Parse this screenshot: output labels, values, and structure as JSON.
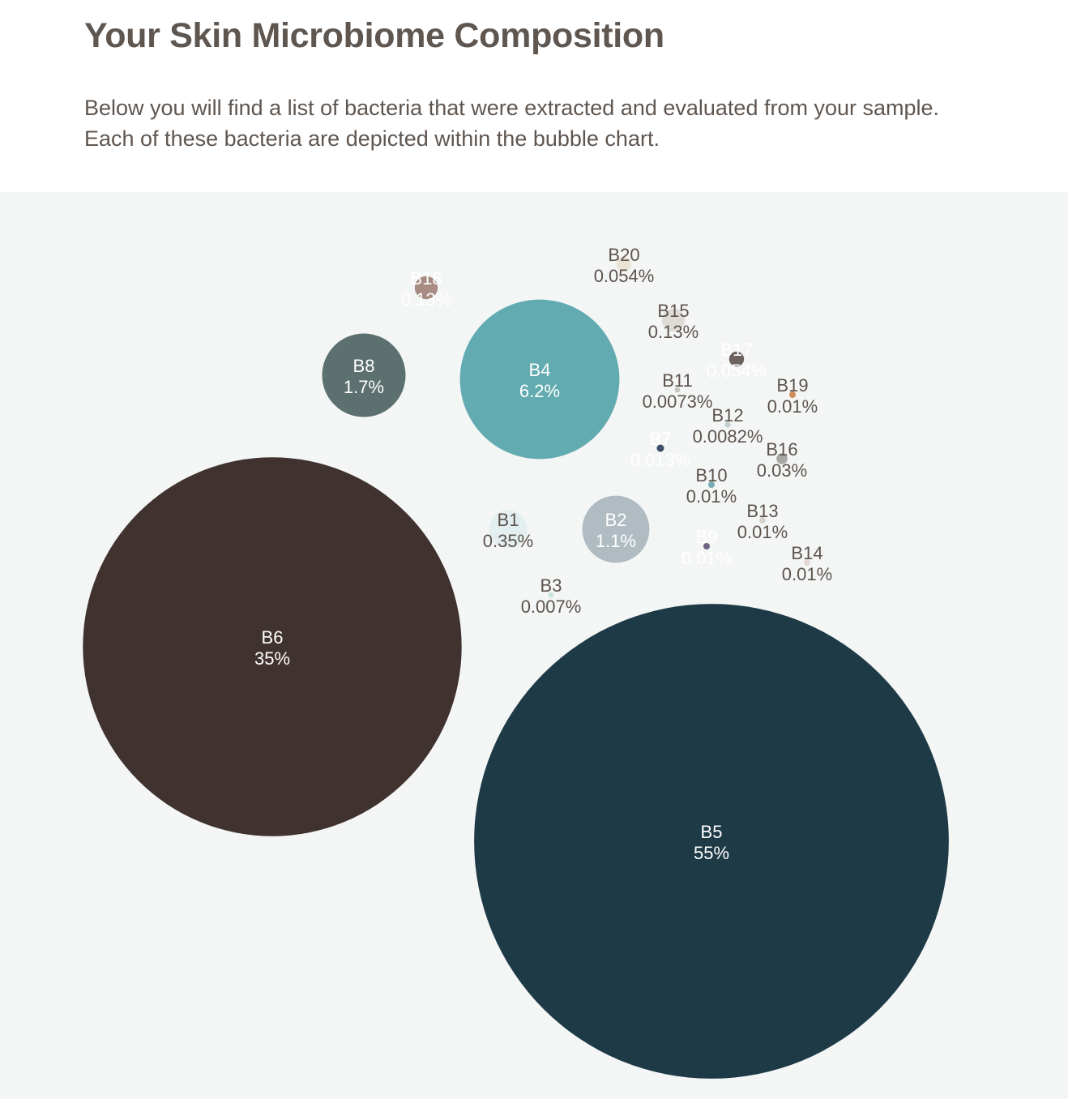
{
  "header": {
    "title": "Your Skin Microbiome Composition",
    "intro": "Below you will find a list of bacteria that were extracted and evaluated from your sample. Each of these bacteria are depicted within the bubble chart."
  },
  "chart_data": {
    "type": "bubble",
    "title": "",
    "legend": "none",
    "grid": false,
    "series": [
      {
        "name": "B1",
        "value": 0.35,
        "label": "0.35%",
        "color": "#e2eeef",
        "text_color": "#5d534c"
      },
      {
        "name": "B2",
        "value": 1.1,
        "label": "1.1%",
        "color": "#b0bcc2",
        "text_color": "#ffffff"
      },
      {
        "name": "B3",
        "value": 0.007,
        "label": "0.007%",
        "color": "#c9e3df",
        "text_color": "#5d534c"
      },
      {
        "name": "B4",
        "value": 6.2,
        "label": "6.2%",
        "color": "#62abb0",
        "text_color": "#ffffff"
      },
      {
        "name": "B5",
        "value": 55,
        "label": "55%",
        "color": "#1e3a46",
        "text_color": "#ffffff"
      },
      {
        "name": "B6",
        "value": 35,
        "label": "35%",
        "color": "#40322e",
        "text_color": "#ffffff"
      },
      {
        "name": "B7",
        "value": 0.013,
        "label": "0.013%",
        "color": "#3b4f66",
        "text_color": "#ffffff"
      },
      {
        "name": "B8",
        "value": 1.7,
        "label": "1.7%",
        "color": "#5c706f",
        "text_color": "#ffffff"
      },
      {
        "name": "B9",
        "value": 0.01,
        "label": "0.01%",
        "color": "#6e6380",
        "text_color": "#ffffff"
      },
      {
        "name": "B10",
        "value": 0.01,
        "label": "0.01%",
        "color": "#78acb3",
        "text_color": "#5d534c"
      },
      {
        "name": "B11",
        "value": 0.0073,
        "label": "0.0073%",
        "color": "#c5c5bf",
        "text_color": "#5d534c"
      },
      {
        "name": "B12",
        "value": 0.0082,
        "label": "0.0082%",
        "color": "#c2cece",
        "text_color": "#5d534c"
      },
      {
        "name": "B13",
        "value": 0.01,
        "label": "0.01%",
        "color": "#d6d2ca",
        "text_color": "#5d534c"
      },
      {
        "name": "B14",
        "value": 0.01,
        "label": "0.01%",
        "color": "#e3d7d2",
        "text_color": "#5d534c"
      },
      {
        "name": "B15",
        "value": 0.13,
        "label": "0.13%",
        "color": "#dedbd7",
        "text_color": "#5d534c"
      },
      {
        "name": "B16",
        "value": 0.03,
        "label": "0.03%",
        "color": "#a8a9a4",
        "text_color": "#5d534c"
      },
      {
        "name": "B17",
        "value": 0.054,
        "label": "0.054%",
        "color": "#6b625d",
        "text_color": "#ffffff"
      },
      {
        "name": "B18",
        "value": 0.13,
        "label": "0.13%",
        "color": "#a88c84",
        "text_color": "#ffffff"
      },
      {
        "name": "B19",
        "value": 0.01,
        "label": "0.01%",
        "color": "#cf8a57",
        "text_color": "#5d534c"
      },
      {
        "name": "B20",
        "value": 0.054,
        "label": "0.054%",
        "color": "#e8e3d4",
        "text_color": "#5d534c"
      }
    ]
  }
}
